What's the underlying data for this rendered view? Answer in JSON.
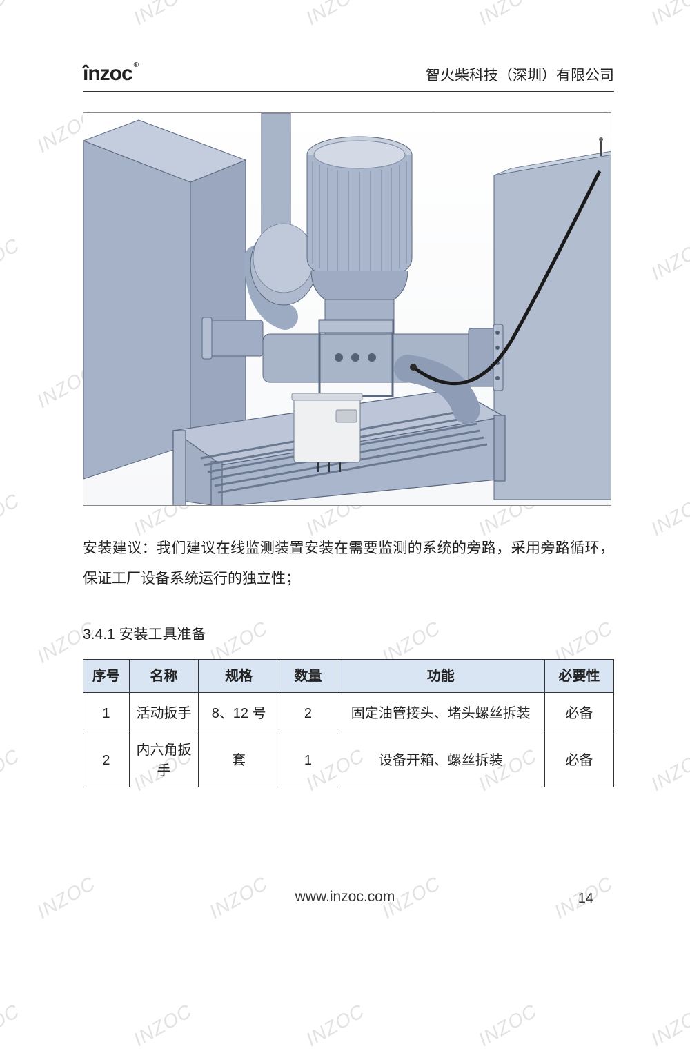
{
  "watermark": {
    "text": "INZOC"
  },
  "header": {
    "logo_text": "înzoc",
    "logo_reg": "®",
    "company": "智火柴科技（深圳）有限公司"
  },
  "figure": {
    "colors": {
      "machine_body": "#a8b4c8",
      "machine_dark": "#8a98b0",
      "machine_light": "#c5cedd",
      "box_white": "#e9ecef",
      "outline": "#3a4658",
      "frame": "#b8c2d4",
      "hose": "#2a2a2a"
    }
  },
  "body_text": "安装建议：我们建议在线监测装置安装在需要监测的系统的旁路，采用旁路循环，保证工厂设备系统运行的独立性；",
  "section_head": "3.4.1 安装工具准备",
  "table": {
    "columns": [
      "序号",
      "名称",
      "规格",
      "数量",
      "功能",
      "必要性"
    ],
    "col_widths": [
      "8%",
      "12%",
      "14%",
      "10%",
      "36%",
      "12%"
    ],
    "rows": [
      [
        "1",
        "活动扳手",
        "8、12 号",
        "2",
        "固定油管接头、堵头螺丝拆装",
        "必备"
      ],
      [
        "2",
        "内六角扳手",
        "套",
        "1",
        "设备开箱、螺丝拆装",
        "必备"
      ]
    ],
    "header_bg": "#d9e5f3",
    "border_color": "#333333"
  },
  "footer": {
    "url": "www.inzoc.com",
    "page": "14"
  }
}
